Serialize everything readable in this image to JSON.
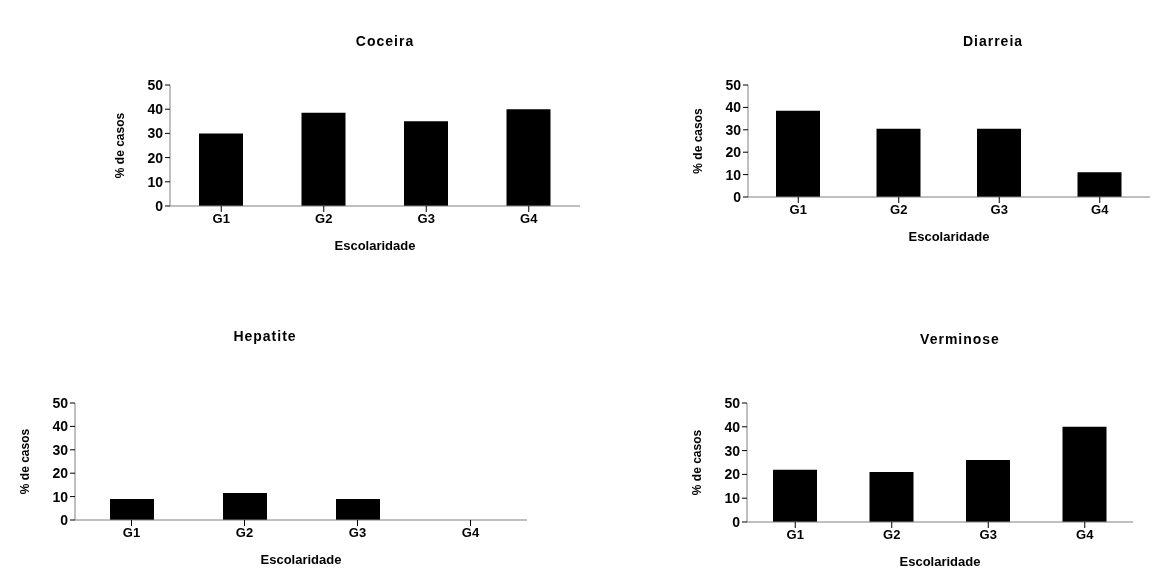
{
  "chart_data": [
    {
      "type": "bar",
      "title": "Coceira",
      "xlabel": "Escolaridade",
      "ylabel": "% de casos",
      "categories": [
        "G1",
        "G2",
        "G3",
        "G4"
      ],
      "values": [
        30,
        38.5,
        35,
        40
      ],
      "color": "#000000",
      "ylim": [
        0,
        50
      ],
      "yticks": [
        0,
        10,
        20,
        30,
        40,
        50
      ],
      "grid": false,
      "legend": false
    },
    {
      "type": "bar",
      "title": "Diarreia",
      "xlabel": "Escolaridade",
      "ylabel": "% de casos",
      "categories": [
        "G1",
        "G2",
        "G3",
        "G4"
      ],
      "values": [
        38.5,
        30.5,
        30.5,
        11
      ],
      "color": "#000000",
      "ylim": [
        0,
        50
      ],
      "yticks": [
        0,
        10,
        20,
        30,
        40,
        50
      ],
      "grid": false,
      "legend": false
    },
    {
      "type": "bar",
      "title": "Hepatite",
      "xlabel": "Escolaridade",
      "ylabel": "% de casos",
      "categories": [
        "G1",
        "G2",
        "G3",
        "G4"
      ],
      "values": [
        9,
        11.5,
        9,
        0
      ],
      "color": "#000000",
      "ylim": [
        0,
        50
      ],
      "yticks": [
        0,
        10,
        20,
        30,
        40,
        50
      ],
      "grid": false,
      "legend": false
    },
    {
      "type": "bar",
      "title": "Verminose",
      "xlabel": "Escolaridade",
      "ylabel": "% de casos",
      "categories": [
        "G1",
        "G2",
        "G3",
        "G4"
      ],
      "values": [
        22,
        21,
        26,
        40
      ],
      "color": "#000000",
      "ylim": [
        0,
        50
      ],
      "yticks": [
        0,
        10,
        20,
        30,
        40,
        50
      ],
      "grid": false,
      "legend": false
    }
  ]
}
